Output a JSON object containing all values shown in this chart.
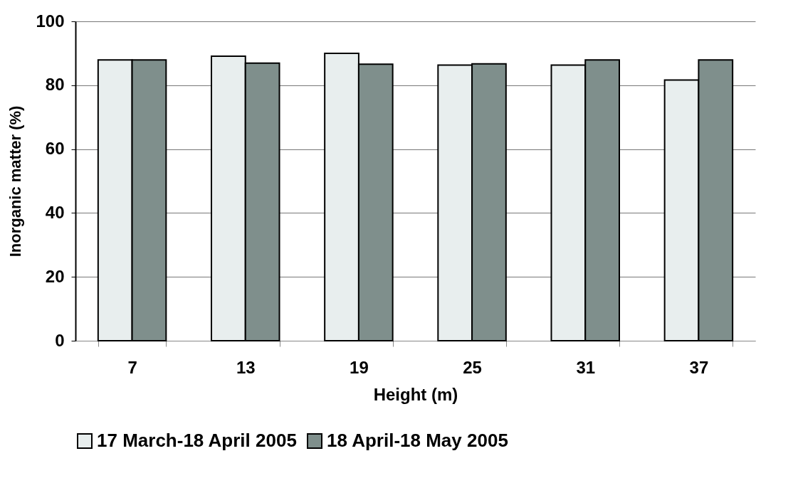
{
  "chart_data": {
    "type": "bar",
    "xlabel": "Height (m)",
    "ylabel": "Inorganic matter (%)",
    "categories": [
      "7",
      "13",
      "19",
      "25",
      "31",
      "37"
    ],
    "series": [
      {
        "name": "17 March-18 April 2005",
        "color": "#e8eeee",
        "values": [
          87.9,
          89.1,
          90.0,
          86.3,
          86.3,
          81.6
        ]
      },
      {
        "name": "18 April-18 May 2005",
        "color": "#7f8f8c",
        "values": [
          87.9,
          86.9,
          86.6,
          86.7,
          87.9,
          87.9
        ]
      }
    ],
    "ylim": [
      0,
      100
    ],
    "yticks": [
      0,
      20,
      40,
      60,
      80,
      100
    ],
    "grid": "y",
    "legend": "bottom"
  }
}
